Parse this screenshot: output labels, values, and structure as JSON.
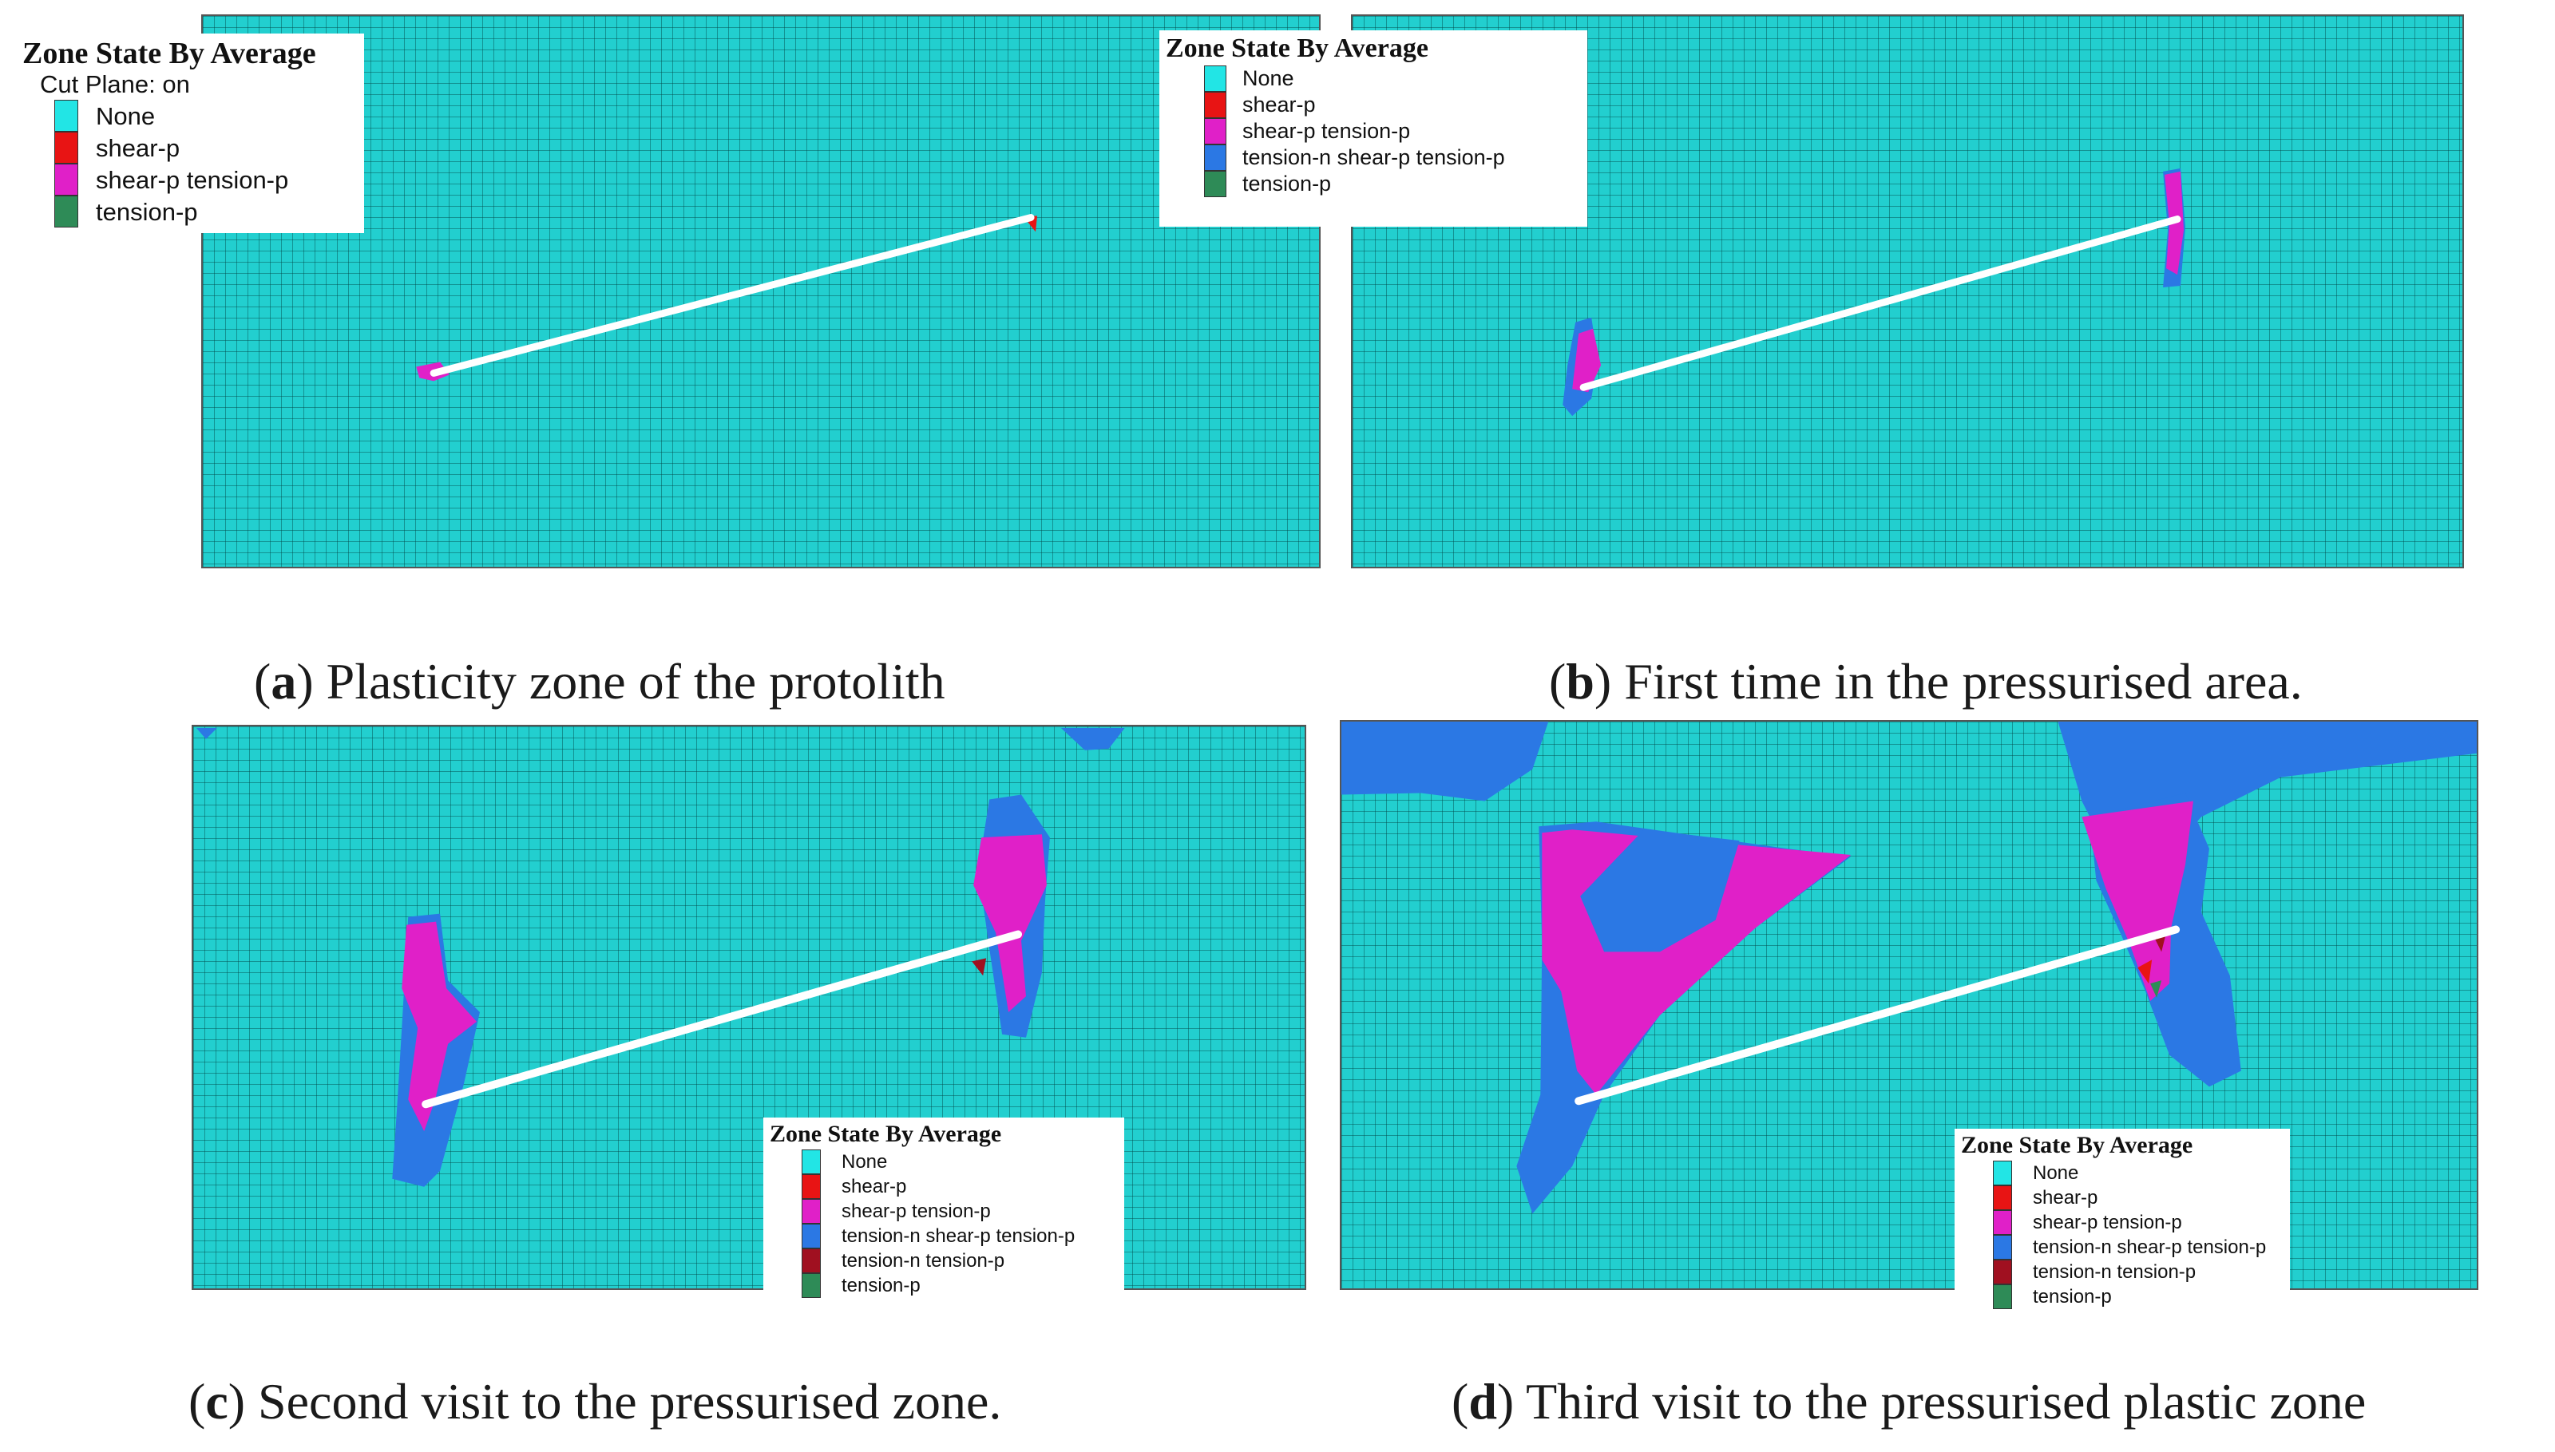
{
  "legend_colors": {
    "None": "#22e5e5",
    "shear-p": "#e81414",
    "shear-p tension-p": "#e020c8",
    "tension-n shear-p tension-p": "#2b78e4",
    "tension-n tension-p": "#a01020",
    "tension-p": "#2e8b57"
  },
  "mesh_color": "#22cfcf",
  "panels": [
    {
      "id": "a",
      "caption_letter": "a",
      "caption_text": "Plasticity zone of the protolith",
      "legend": {
        "title": "Zone State By Average",
        "subtitle": "Cut Plane: on",
        "items": [
          "None",
          "shear-p",
          "shear-p tension-p",
          "tension-p"
        ]
      }
    },
    {
      "id": "b",
      "caption_letter": "b",
      "caption_text": "First time in the pressurised area.",
      "legend": {
        "title": "Zone State By Average",
        "items": [
          "None",
          "shear-p",
          "shear-p tension-p",
          "tension-n shear-p tension-p",
          "tension-p"
        ]
      }
    },
    {
      "id": "c",
      "caption_letter": "c",
      "caption_text": "Second visit to the pressurised zone.",
      "legend": {
        "title": "Zone State By Average",
        "items": [
          "None",
          "shear-p",
          "shear-p tension-p",
          "tension-n shear-p tension-p",
          "tension-n tension-p",
          "tension-p"
        ]
      }
    },
    {
      "id": "d",
      "caption_letter": "d",
      "caption_text": "Third visit to the pressurised plastic zone",
      "legend": {
        "title": "Zone State By Average",
        "items": [
          "None",
          "shear-p",
          "shear-p tension-p",
          "tension-n shear-p tension-p",
          "tension-n tension-p",
          "tension-p"
        ]
      }
    }
  ]
}
